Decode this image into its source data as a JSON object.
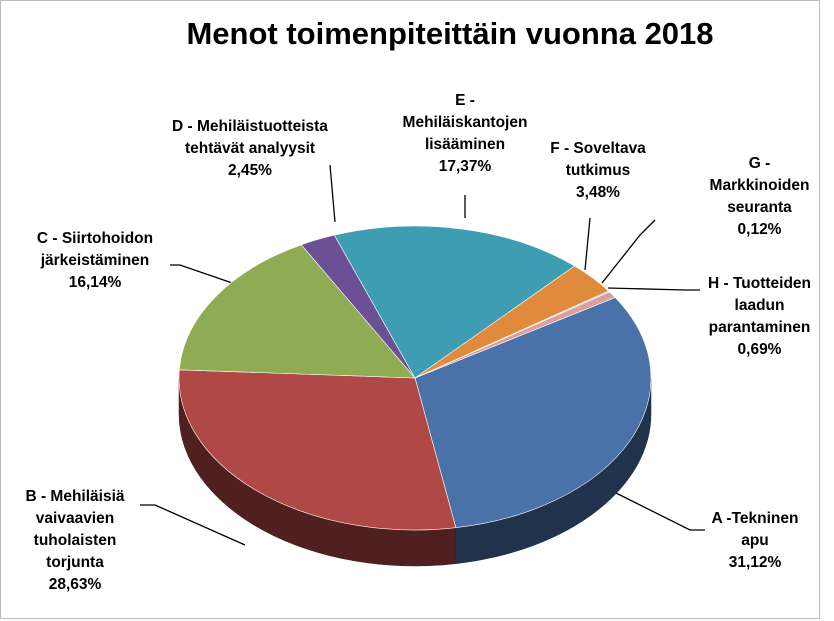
{
  "chart_data": {
    "type": "pie",
    "title": "Menot toimenpiteittäin vuonna 2018",
    "categories": [
      "A -Tekninen apu",
      "B - Mehiläisiä vaivaavien tuholaisten torjunta",
      "C - Siirtohoidon järkeistäminen",
      "D - Mehiläistuotteista tehtävät analyysit",
      "E - Mehiläiskantojen lisääminen",
      "F - Soveltava tutkimus",
      "G - Markkinoiden seuranta",
      "H - Tuotteiden laadun parantaminen"
    ],
    "values": [
      31.12,
      28.63,
      16.14,
      2.45,
      17.37,
      3.48,
      0.12,
      0.69
    ],
    "value_labels": [
      "31,12%",
      "28,63%",
      "16,14%",
      "2,45%",
      "17,37%",
      "3,48%",
      "0,12%",
      "0,69%"
    ],
    "colors": [
      "#4a72a8",
      "#b04845",
      "#8fac55",
      "#6b5096",
      "#3e9db3",
      "#e08a3c",
      "#a9bfdd",
      "#d9a09e"
    ]
  }
}
